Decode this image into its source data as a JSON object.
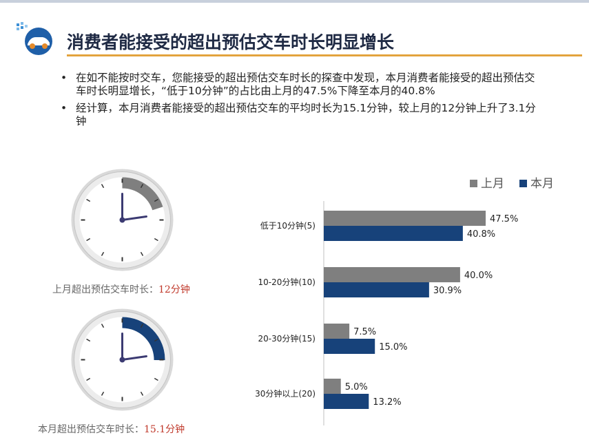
{
  "title": "消费者能接受的超出预估交车时长明显增长",
  "bullets": [
    "在如不能按时交车，您能接受的超出预估交车时长的探查中发现，本月消费者能接受的超出预估交车时长明显增长，“低于10分钟”的占比由上月的47.5%下降至本月的40.8%",
    "经计算，本月消费者能接受的超出预估交车的平均时长为15.1分钟，较上月的12分钟上升了3.1分钟"
  ],
  "clocks": [
    {
      "caption": "上月超出预估交车时长：",
      "value": "12分钟",
      "minutes": 12,
      "arc_color": "#7f7f7f"
    },
    {
      "caption": "本月超出预估交车时长：",
      "value": "15.1分钟",
      "minutes": 15.1,
      "arc_color": "#17427a"
    }
  ],
  "chart_data": {
    "type": "bar",
    "orientation": "horizontal",
    "categories": [
      "低于10分钟(5)",
      "10-20分钟(10)",
      "20-30分钟(15)",
      "30分钟以上(20)"
    ],
    "series": [
      {
        "name": "上月",
        "values": [
          47.5,
          40.0,
          7.5,
          5.0
        ],
        "labels": [
          "47.5%",
          "40.0%",
          "7.5%",
          "5.0%"
        ],
        "color": "#7f7f7f"
      },
      {
        "name": "本月",
        "values": [
          40.8,
          30.9,
          15.0,
          13.2
        ],
        "labels": [
          "40.8%",
          "30.9%",
          "15.0%",
          "13.2%"
        ],
        "color": "#17427a"
      }
    ],
    "xlim": [
      0,
      60
    ],
    "legend": "top-right",
    "grid": false
  }
}
